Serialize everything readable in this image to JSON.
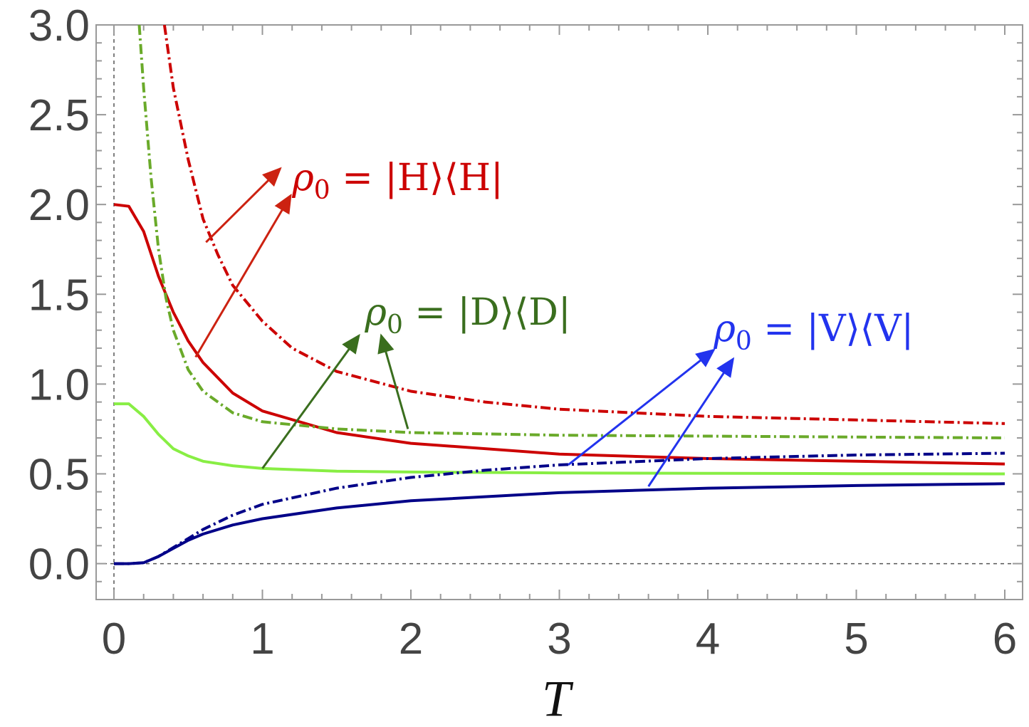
{
  "chart_data": {
    "type": "line",
    "title": "",
    "xlabel": "T",
    "ylabel": "",
    "xlim": [
      -0.12,
      6.12
    ],
    "ylim": [
      -0.2,
      3.0
    ],
    "xticks": [
      0,
      1,
      2,
      3,
      4,
      5,
      6
    ],
    "yticks": [
      0.0,
      0.5,
      1.0,
      1.5,
      2.0,
      2.5,
      3.0
    ],
    "xtick_labels": [
      "0",
      "1",
      "2",
      "3",
      "4",
      "5",
      "6"
    ],
    "ytick_labels": [
      "0.0",
      "0.5",
      "1.0",
      "1.5",
      "2.0",
      "2.5",
      "3.0"
    ],
    "reference_lines": {
      "x0": 0,
      "y0": 0,
      "style": "dashed"
    },
    "grid": false,
    "series": [
      {
        "color": "#cc0000",
        "style": "solid",
        "x": [
          0,
          0.1,
          0.2,
          0.3,
          0.4,
          0.5,
          0.6,
          0.8,
          1,
          1.5,
          2,
          3,
          4,
          5,
          6
        ],
        "y": [
          2.0,
          1.99,
          1.85,
          1.6,
          1.4,
          1.24,
          1.12,
          0.95,
          0.85,
          0.73,
          0.67,
          0.61,
          0.585,
          0.57,
          0.555
        ]
      },
      {
        "color": "#cc0000",
        "style": "dashdot",
        "x": [
          0.34,
          0.4,
          0.5,
          0.6,
          0.7,
          0.8,
          1,
          1.2,
          1.5,
          2,
          2.5,
          3,
          4,
          5,
          6
        ],
        "y": [
          3.0,
          2.65,
          2.25,
          1.92,
          1.72,
          1.55,
          1.35,
          1.2,
          1.07,
          0.96,
          0.9,
          0.86,
          0.82,
          0.8,
          0.78
        ]
      },
      {
        "color": "#6aaa2a",
        "style": "dashdot",
        "x": [
          0.17,
          0.2,
          0.25,
          0.3,
          0.35,
          0.4,
          0.5,
          0.6,
          0.8,
          1,
          1.5,
          2,
          3,
          4,
          5,
          6
        ],
        "y": [
          3.0,
          2.65,
          2.15,
          1.75,
          1.48,
          1.3,
          1.08,
          0.96,
          0.84,
          0.79,
          0.75,
          0.73,
          0.715,
          0.71,
          0.705,
          0.7
        ]
      },
      {
        "color": "#88ee44",
        "style": "solid",
        "x": [
          0,
          0.1,
          0.2,
          0.3,
          0.4,
          0.5,
          0.6,
          0.8,
          1,
          1.5,
          2,
          3,
          4,
          5,
          6
        ],
        "y": [
          0.89,
          0.89,
          0.82,
          0.72,
          0.64,
          0.6,
          0.57,
          0.545,
          0.53,
          0.515,
          0.51,
          0.505,
          0.503,
          0.501,
          0.5
        ]
      },
      {
        "color": "#000088",
        "style": "dashdot",
        "x": [
          0,
          0.1,
          0.2,
          0.3,
          0.4,
          0.5,
          0.6,
          0.8,
          1,
          1.5,
          2,
          2.5,
          3,
          4,
          5,
          6
        ],
        "y": [
          0.0,
          0.0,
          0.005,
          0.04,
          0.09,
          0.14,
          0.19,
          0.27,
          0.33,
          0.42,
          0.48,
          0.52,
          0.55,
          0.585,
          0.605,
          0.615
        ]
      },
      {
        "color": "#000088",
        "style": "solid",
        "x": [
          0,
          0.1,
          0.2,
          0.3,
          0.4,
          0.5,
          0.6,
          0.8,
          1,
          1.5,
          2,
          3,
          4,
          5,
          6
        ],
        "y": [
          0.0,
          0.0,
          0.005,
          0.04,
          0.085,
          0.13,
          0.165,
          0.215,
          0.25,
          0.31,
          0.35,
          0.395,
          0.42,
          0.435,
          0.445
        ]
      }
    ],
    "annotations": [
      {
        "rho": "ρ",
        "sub": "0",
        "rest": " = |H⟩⟨H|",
        "color": "#cc0000",
        "x": 1.2,
        "y": 2.08,
        "arrows": [
          {
            "from": [
              0.62,
              1.79
            ],
            "to": [
              1.12,
              2.2
            ]
          },
          {
            "from": [
              0.55,
              1.15
            ],
            "to": [
              1.19,
              2.05
            ]
          }
        ]
      },
      {
        "rho": "ρ",
        "sub": "0",
        "rest": " = |D⟩⟨D|",
        "color": "#3a6e1e",
        "x": 1.69,
        "y": 1.33,
        "arrows": [
          {
            "from": [
              1.0,
              0.53
            ],
            "to": [
              1.65,
              1.27
            ]
          },
          {
            "from": [
              1.98,
              0.75
            ],
            "to": [
              1.8,
              1.27
            ]
          }
        ]
      },
      {
        "rho": "ρ",
        "sub": "0",
        "rest": " = |V⟩⟨V|",
        "color": "#2233ee",
        "x": 4.04,
        "y": 1.24,
        "arrows": [
          {
            "from": [
              3.06,
              0.55
            ],
            "to": [
              4.04,
              1.19
            ]
          },
          {
            "from": [
              3.6,
              0.43
            ],
            "to": [
              4.17,
              1.14
            ]
          }
        ]
      }
    ]
  }
}
